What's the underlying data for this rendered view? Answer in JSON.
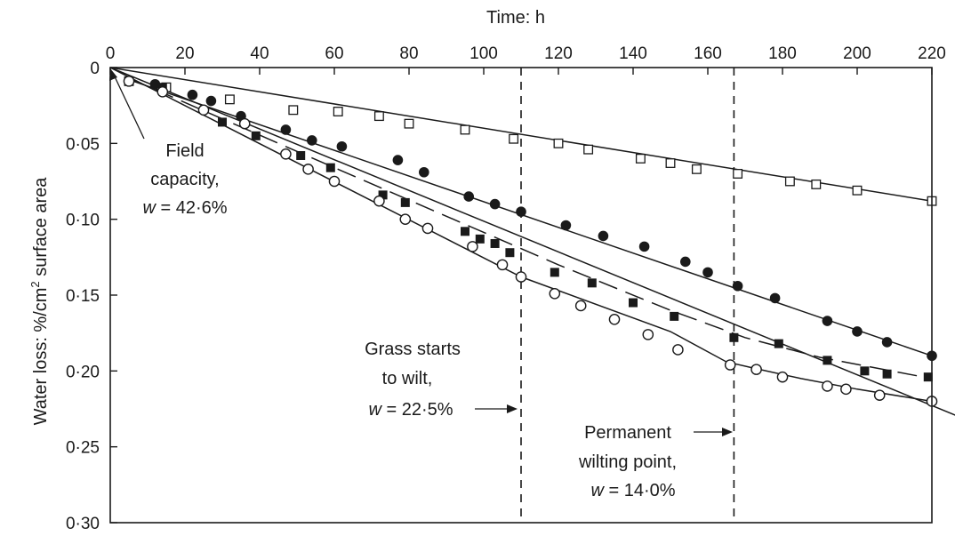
{
  "chart_data": {
    "type": "scatter",
    "title": "",
    "xlabel": "Time: h",
    "ylabel": "Water loss: %/cm² surface area",
    "ylabel_parts": [
      "Water loss: %/cm",
      "2",
      " surface area"
    ],
    "xlim": [
      0,
      220
    ],
    "ylim": [
      0.3,
      0
    ],
    "y_axis_inverted": true,
    "x_axis_position": "top",
    "grid": false,
    "x_ticks": [
      0,
      20,
      40,
      60,
      80,
      100,
      120,
      140,
      160,
      180,
      200,
      220
    ],
    "x_tick_labels": [
      "0",
      "20",
      "40",
      "60",
      "80",
      "100",
      "120",
      "140",
      "160",
      "180",
      "200",
      "220"
    ],
    "y_ticks": [
      0,
      0.05,
      0.1,
      0.15,
      0.2,
      0.25,
      0.3
    ],
    "y_tick_labels": [
      "0",
      "0·05",
      "0·10",
      "0·15",
      "0·20",
      "0·25",
      "0·30"
    ],
    "series": [
      {
        "marker": "open-square",
        "line": "solid",
        "points": [
          [
            5,
            0.009
          ],
          [
            15,
            0.013
          ],
          [
            32,
            0.021
          ],
          [
            49,
            0.028
          ],
          [
            61,
            0.029
          ],
          [
            72,
            0.032
          ],
          [
            80,
            0.037
          ],
          [
            95,
            0.041
          ],
          [
            108,
            0.047
          ],
          [
            120,
            0.05
          ],
          [
            128,
            0.054
          ],
          [
            142,
            0.06
          ],
          [
            150,
            0.063
          ],
          [
            157,
            0.067
          ],
          [
            168,
            0.07
          ],
          [
            182,
            0.075
          ],
          [
            189,
            0.077
          ],
          [
            200,
            0.081
          ],
          [
            220,
            0.088
          ]
        ],
        "fit": [
          [
            0,
            0.0
          ],
          [
            220,
            0.088
          ]
        ]
      },
      {
        "marker": "filled-circle",
        "line": "solid",
        "points": [
          [
            5,
            0.009
          ],
          [
            12,
            0.011
          ],
          [
            22,
            0.018
          ],
          [
            27,
            0.022
          ],
          [
            35,
            0.032
          ],
          [
            47,
            0.041
          ],
          [
            54,
            0.048
          ],
          [
            62,
            0.052
          ],
          [
            77,
            0.061
          ],
          [
            84,
            0.069
          ],
          [
            96,
            0.085
          ],
          [
            103,
            0.09
          ],
          [
            110,
            0.095
          ],
          [
            122,
            0.104
          ],
          [
            132,
            0.111
          ],
          [
            143,
            0.118
          ],
          [
            154,
            0.128
          ],
          [
            160,
            0.135
          ],
          [
            168,
            0.144
          ],
          [
            178,
            0.152
          ],
          [
            192,
            0.167
          ],
          [
            200,
            0.174
          ],
          [
            208,
            0.181
          ],
          [
            220,
            0.19
          ]
        ],
        "fit": [
          [
            5,
            0.008
          ],
          [
            220,
            0.19
          ]
        ]
      },
      {
        "marker": "filled-square",
        "line": "dashed",
        "points": [
          [
            5,
            0.009
          ],
          [
            14,
            0.013
          ],
          [
            30,
            0.036
          ],
          [
            39,
            0.045
          ],
          [
            51,
            0.058
          ],
          [
            59,
            0.066
          ],
          [
            73,
            0.084
          ],
          [
            79,
            0.089
          ],
          [
            95,
            0.108
          ],
          [
            99,
            0.113
          ],
          [
            103,
            0.116
          ],
          [
            107,
            0.122
          ],
          [
            119,
            0.135
          ],
          [
            129,
            0.142
          ],
          [
            140,
            0.155
          ],
          [
            151,
            0.164
          ],
          [
            167,
            0.178
          ],
          [
            179,
            0.182
          ],
          [
            192,
            0.193
          ],
          [
            202,
            0.2
          ],
          [
            208,
            0.202
          ],
          [
            219,
            0.204
          ]
        ],
        "fit": [
          [
            5,
            0.007
          ],
          [
            60,
            0.066
          ],
          [
            120,
            0.13
          ],
          [
            150,
            0.16
          ],
          [
            170,
            0.178
          ],
          [
            190,
            0.191
          ],
          [
            220,
            0.205
          ]
        ]
      },
      {
        "marker": "open-circle",
        "line": "solid",
        "points": [
          [
            5,
            0.009
          ],
          [
            14,
            0.016
          ],
          [
            25,
            0.028
          ],
          [
            36,
            0.037
          ],
          [
            47,
            0.057
          ],
          [
            53,
            0.067
          ],
          [
            60,
            0.075
          ],
          [
            72,
            0.088
          ],
          [
            79,
            0.1
          ],
          [
            85,
            0.106
          ],
          [
            97,
            0.118
          ],
          [
            105,
            0.13
          ],
          [
            110,
            0.138
          ],
          [
            119,
            0.149
          ],
          [
            126,
            0.157
          ],
          [
            135,
            0.166
          ],
          [
            144,
            0.176
          ],
          [
            152,
            0.186
          ],
          [
            166,
            0.196
          ],
          [
            173,
            0.199
          ],
          [
            180,
            0.204
          ],
          [
            192,
            0.21
          ],
          [
            197,
            0.212
          ],
          [
            206,
            0.216
          ],
          [
            220,
            0.22
          ]
        ],
        "fit": [
          [
            0,
            0.0
          ],
          [
            110,
            0.138
          ],
          [
            150,
            0.174
          ],
          [
            165,
            0.194
          ],
          [
            172,
            0.198
          ],
          [
            185,
            0.205
          ],
          [
            200,
            0.212
          ],
          [
            220,
            0.22
          ]
        ]
      }
    ],
    "tangent_line": [
      [
        0,
        0.0
      ],
      [
        238,
        0.241
      ]
    ],
    "reference_lines": [
      {
        "x": 110,
        "label": "grass-starts-to-wilt"
      },
      {
        "x": 167,
        "label": "permanent-wilting-point"
      }
    ],
    "annotations": {
      "field_capacity": {
        "lines": [
          "Field",
          "capacity,"
        ],
        "w_label": "w",
        "w_value": " = 42·6%"
      },
      "grass_wilt": {
        "lines": [
          "Grass starts",
          "to wilt,"
        ],
        "w_label": "w",
        "w_value": " = 22·5%"
      },
      "permanent_wilt": {
        "lines": [
          "Permanent",
          "wilting point,"
        ],
        "w_label": "w",
        "w_value": " = 14·0%"
      }
    },
    "colors": {
      "ink": "#1a1a1a",
      "background": "#ffffff"
    }
  }
}
